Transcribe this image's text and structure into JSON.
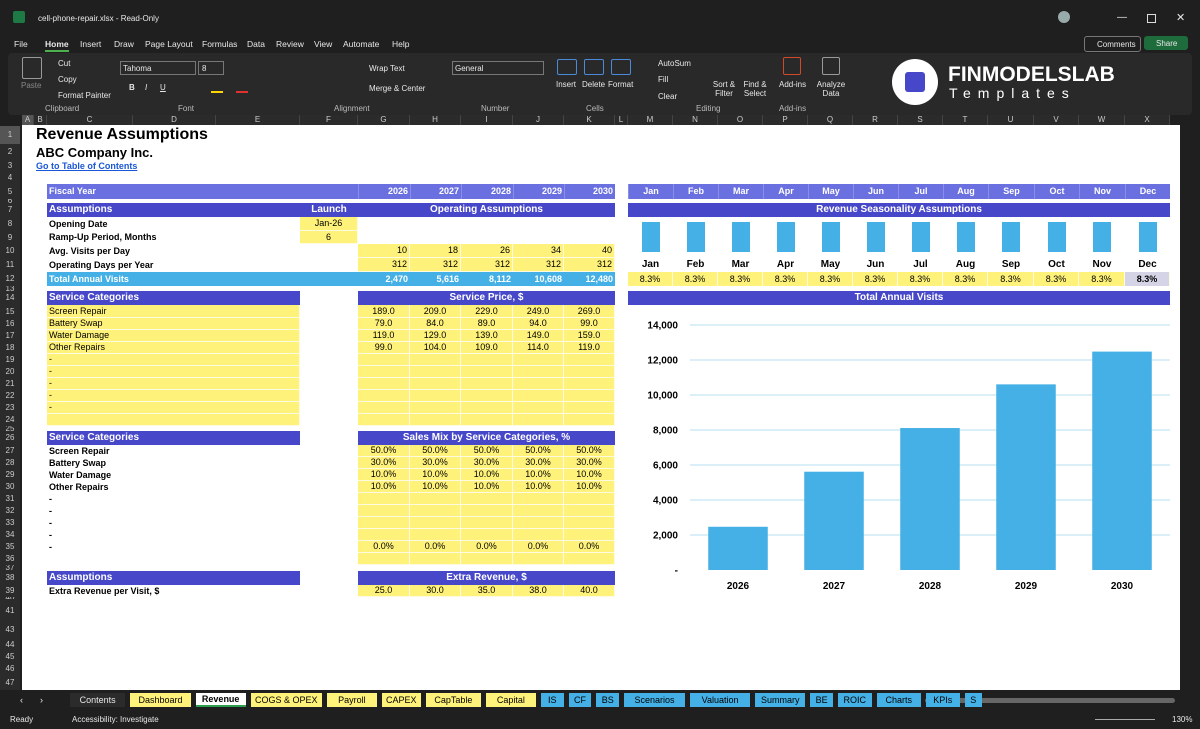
{
  "window": {
    "title": "cell-phone-repair.xlsx - Read-Only"
  },
  "menu": [
    "File",
    "Home",
    "Insert",
    "Draw",
    "Page Layout",
    "Formulas",
    "Data",
    "Review",
    "View",
    "Automate",
    "Help"
  ],
  "actions": {
    "comments": "Comments",
    "share": "Share"
  },
  "ribbon": {
    "clipboard": {
      "paste": "Paste",
      "cut": "Cut",
      "copy": "Copy",
      "format_painter": "Format Painter",
      "label": "Clipboard"
    },
    "font": {
      "name": "Tahoma",
      "size": "8",
      "styles": [
        "B",
        "I",
        "U"
      ],
      "label": "Font"
    },
    "alignment": {
      "wrap": "Wrap Text",
      "merge": "Merge & Center",
      "label": "Alignment"
    },
    "number": {
      "format": "General",
      "label": "Number"
    },
    "cells": {
      "insert": "Insert",
      "delete": "Delete",
      "format": "Format",
      "label": "Cells"
    },
    "editing": {
      "autosum": "AutoSum",
      "fill": "Fill",
      "clear": "Clear",
      "sort": "Sort & Filter",
      "find": "Find & Select",
      "label": "Editing"
    },
    "addins": {
      "button": "Add-ins",
      "label": "Add-ins"
    },
    "analyze": "Analyze Data"
  },
  "logo": {
    "name": "FINMODELSLAB",
    "sub": "Templates"
  },
  "columns": [
    "A",
    "B",
    "C",
    "D",
    "E",
    "F",
    "G",
    "H",
    "I",
    "J",
    "K",
    "L",
    "M",
    "N",
    "O",
    "P",
    "Q",
    "R",
    "S",
    "T",
    "U",
    "V",
    "W",
    "X"
  ],
  "row_numbers": [
    "1",
    "2",
    "3",
    "4",
    "5",
    "6",
    "7",
    "8",
    "9",
    "10",
    "11",
    "12",
    "13",
    "14",
    "15",
    "16",
    "17",
    "18",
    "19",
    "20",
    "21",
    "22",
    "23",
    "24",
    "25",
    "26",
    "27",
    "28",
    "29",
    "30",
    "31",
    "32",
    "33",
    "34",
    "35",
    "36",
    "37",
    "38",
    "39",
    "40",
    "41",
    "43",
    "44",
    "45",
    "46",
    "47"
  ],
  "sheet": {
    "title": "Revenue Assumptions",
    "company": "ABC Company Inc.",
    "link": "Go to Table of Contents",
    "fiscal_year": "Fiscal Year",
    "years": [
      "2026",
      "2027",
      "2028",
      "2029",
      "2030"
    ],
    "months": [
      "Jan",
      "Feb",
      "Mar",
      "Apr",
      "May",
      "Jun",
      "Jul",
      "Aug",
      "Sep",
      "Oct",
      "Nov",
      "Dec"
    ],
    "operating": {
      "headers": [
        "Assumptions",
        "Launch",
        "Operating Assumptions"
      ],
      "rows": [
        [
          "Opening Date",
          "Jan-26"
        ],
        [
          "Ramp-Up Period, Months",
          "6"
        ],
        [
          "Avg. Visits per Day",
          null,
          "10",
          "18",
          "26",
          "34",
          "40"
        ],
        [
          "Operating Days per Year",
          null,
          "312",
          "312",
          "312",
          "312",
          "312"
        ]
      ],
      "total": [
        "Total Annual Visits",
        null,
        "2,470",
        "5,616",
        "8,112",
        "10,608",
        "12,480"
      ]
    },
    "prices": {
      "headers": [
        "Service Categories",
        "Service Price, $"
      ],
      "rows": [
        [
          "Screen Repair",
          "189.0",
          "209.0",
          "229.0",
          "249.0",
          "269.0"
        ],
        [
          "Battery Swap",
          "79.0",
          "84.0",
          "89.0",
          "94.0",
          "99.0"
        ],
        [
          "Water Damage",
          "119.0",
          "129.0",
          "139.0",
          "149.0",
          "159.0"
        ],
        [
          "Other Repairs",
          "99.0",
          "104.0",
          "109.0",
          "114.0",
          "119.0"
        ],
        [
          "-"
        ],
        [
          "-"
        ],
        [
          "-"
        ],
        [
          "-"
        ],
        [
          "-"
        ]
      ]
    },
    "mix": {
      "headers": [
        "Service Categories",
        "Sales Mix by Service Categories, %"
      ],
      "rows": [
        [
          "Screen Repair",
          "50.0%",
          "50.0%",
          "50.0%",
          "50.0%",
          "50.0%"
        ],
        [
          "Battery Swap",
          "30.0%",
          "30.0%",
          "30.0%",
          "30.0%",
          "30.0%"
        ],
        [
          "Water Damage",
          "10.0%",
          "10.0%",
          "10.0%",
          "10.0%",
          "10.0%"
        ],
        [
          "Other Repairs",
          "10.0%",
          "10.0%",
          "10.0%",
          "10.0%",
          "10.0%"
        ],
        [
          "-"
        ],
        [
          "-"
        ],
        [
          "-"
        ],
        [
          "-"
        ],
        [
          "-",
          "0.0%",
          "0.0%",
          "0.0%",
          "0.0%",
          "0.0%"
        ]
      ]
    },
    "extra": {
      "headers": [
        "Assumptions",
        "Extra Revenue, $"
      ],
      "rows": [
        [
          "Extra Revenue per Visit, $",
          "25.0",
          "30.0",
          "35.0",
          "38.0",
          "40.0"
        ]
      ]
    }
  },
  "chart_data": [
    {
      "type": "bar",
      "title": "Revenue Seasonality Assumptions",
      "categories": [
        "Jan",
        "Feb",
        "Mar",
        "Apr",
        "May",
        "Jun",
        "Jul",
        "Aug",
        "Sep",
        "Oct",
        "Nov",
        "Dec"
      ],
      "values": [
        8.3,
        8.3,
        8.3,
        8.3,
        8.3,
        8.3,
        8.3,
        8.3,
        8.3,
        8.3,
        8.3,
        8.3
      ],
      "value_labels": [
        "8.3%",
        "8.3%",
        "8.3%",
        "8.3%",
        "8.3%",
        "8.3%",
        "8.3%",
        "8.3%",
        "8.3%",
        "8.3%",
        "8.3%",
        "8.3%"
      ],
      "color": "#45b0e5"
    },
    {
      "type": "bar",
      "title": "Total Annual Visits",
      "categories": [
        "2026",
        "2027",
        "2028",
        "2029",
        "2030"
      ],
      "values": [
        2470,
        5616,
        8112,
        10608,
        12480
      ],
      "ylim": [
        0,
        14000
      ],
      "yticks": [
        {
          "value": 0,
          "label": "-"
        },
        {
          "value": 2000,
          "label": "2,000"
        },
        {
          "value": 4000,
          "label": "4,000"
        },
        {
          "value": 6000,
          "label": "6,000"
        },
        {
          "value": 8000,
          "label": "8,000"
        },
        {
          "value": 10000,
          "label": "10,000"
        },
        {
          "value": 12000,
          "label": "12,000"
        },
        {
          "value": 14000,
          "label": "14,000"
        }
      ],
      "grid": true,
      "color": "#45b0e5"
    }
  ],
  "tabs": [
    {
      "name": "Contents",
      "color": "#2b2b2b"
    },
    {
      "name": "Dashboard",
      "color": "#fff27a"
    },
    {
      "name": "Revenue",
      "color": "#ffffff"
    },
    {
      "name": "COGS & OPEX",
      "color": "#fff27a"
    },
    {
      "name": "Payroll",
      "color": "#fff27a"
    },
    {
      "name": "CAPEX",
      "color": "#fff27a"
    },
    {
      "name": "CapTable",
      "color": "#fff27a"
    },
    {
      "name": "Capital",
      "color": "#fff27a"
    },
    {
      "name": "IS",
      "color": "#45b0e5"
    },
    {
      "name": "CF",
      "color": "#45b0e5"
    },
    {
      "name": "BS",
      "color": "#45b0e5"
    },
    {
      "name": "Scenarios",
      "color": "#45b0e5"
    },
    {
      "name": "Valuation",
      "color": "#45b0e5"
    },
    {
      "name": "Summary",
      "color": "#45b0e5"
    },
    {
      "name": "BE",
      "color": "#45b0e5"
    },
    {
      "name": "ROIC",
      "color": "#45b0e5"
    },
    {
      "name": "Charts",
      "color": "#45b0e5"
    },
    {
      "name": "KPIs",
      "color": "#45b0e5"
    },
    {
      "name": "S",
      "color": "#45b0e5"
    }
  ],
  "status": {
    "ready": "Ready",
    "accessibility": "Accessibility: Investigate",
    "zoom": "130%"
  }
}
